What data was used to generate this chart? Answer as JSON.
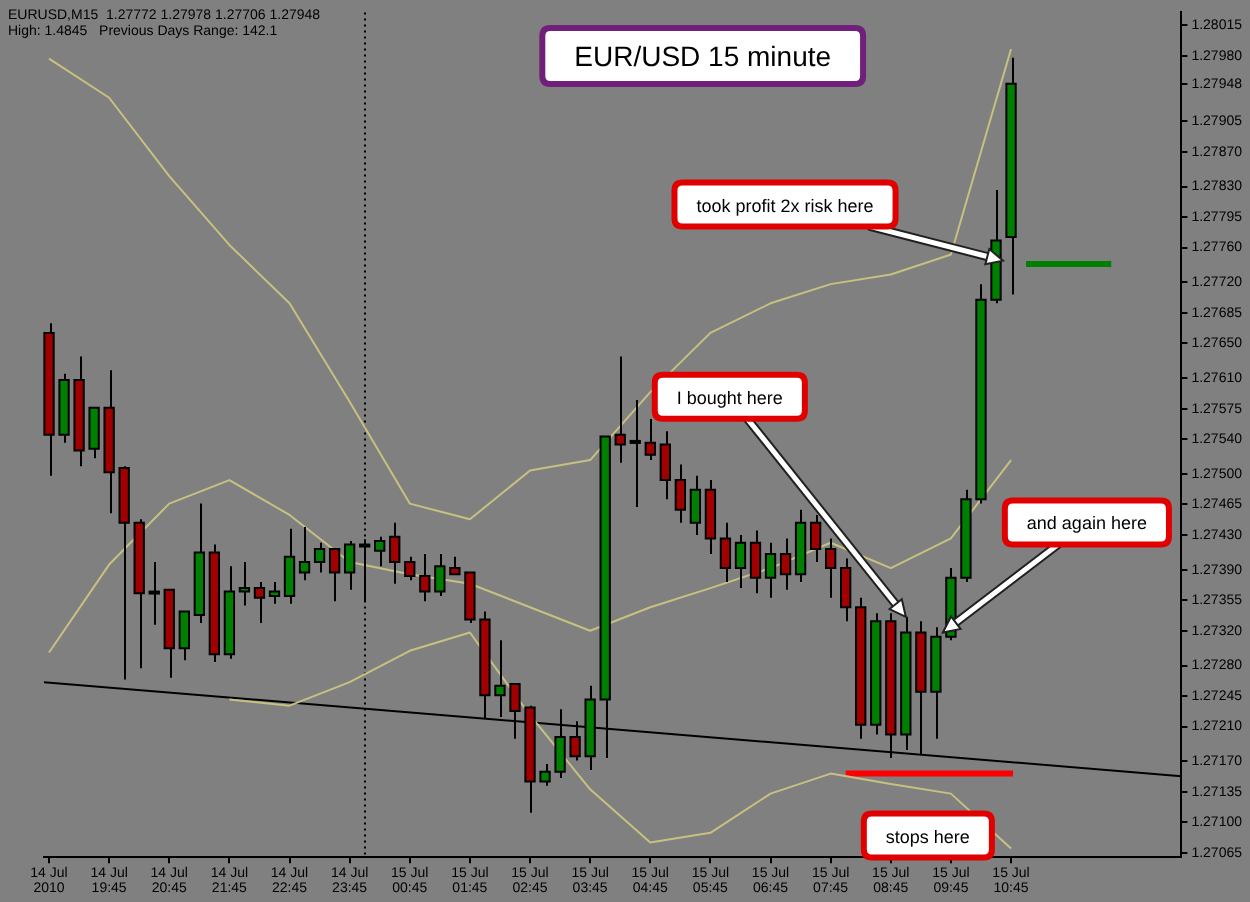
{
  "chart_data": {
    "type": "candlestick",
    "title": "EUR/USD 15 minute",
    "x": [
      "2010-07-14T18:45",
      "2010-07-14T19:00",
      "2010-07-14T19:15",
      "2010-07-14T19:30",
      "2010-07-14T19:45",
      "2010-07-14T20:00",
      "2010-07-14T20:15",
      "2010-07-14T20:30",
      "2010-07-14T20:45",
      "2010-07-14T21:00",
      "2010-07-14T21:15",
      "2010-07-14T21:30",
      "2010-07-14T21:45",
      "2010-07-14T22:00",
      "2010-07-14T22:15",
      "2010-07-14T22:30",
      "2010-07-14T22:45",
      "2010-07-14T23:00",
      "2010-07-14T23:15",
      "2010-07-14T23:30",
      "2010-07-14T23:45",
      "2010-07-15T00:00",
      "2010-07-15T00:15",
      "2010-07-15T00:30",
      "2010-07-15T00:45",
      "2010-07-15T01:00",
      "2010-07-15T01:15",
      "2010-07-15T01:30",
      "2010-07-15T01:45",
      "2010-07-15T02:00",
      "2010-07-15T02:15",
      "2010-07-15T02:30",
      "2010-07-15T02:45",
      "2010-07-15T03:00",
      "2010-07-15T03:15",
      "2010-07-15T03:30",
      "2010-07-15T03:45",
      "2010-07-15T04:00",
      "2010-07-15T04:15",
      "2010-07-15T04:30",
      "2010-07-15T04:45",
      "2010-07-15T05:00",
      "2010-07-15T05:15",
      "2010-07-15T05:30",
      "2010-07-15T05:45",
      "2010-07-15T06:00",
      "2010-07-15T06:15",
      "2010-07-15T06:30",
      "2010-07-15T06:45",
      "2010-07-15T07:00",
      "2010-07-15T07:15",
      "2010-07-15T07:30",
      "2010-07-15T07:45",
      "2010-07-15T08:00",
      "2010-07-15T08:15",
      "2010-07-15T08:30",
      "2010-07-15T08:45",
      "2010-07-15T09:00",
      "2010-07-15T09:15",
      "2010-07-15T09:30",
      "2010-07-15T09:45",
      "2010-07-15T10:00",
      "2010-07-15T10:15",
      "2010-07-15T10:30",
      "2010-07-15T10:45"
    ],
    "ohlc": [
      [
        1.27662,
        1.27673,
        1.27498,
        1.27545
      ],
      [
        1.27545,
        1.27615,
        1.27536,
        1.27608
      ],
      [
        1.27608,
        1.27635,
        1.27509,
        1.27527
      ],
      [
        1.27529,
        1.27576,
        1.27518,
        1.27576
      ],
      [
        1.27576,
        1.27619,
        1.27455,
        1.27502
      ],
      [
        1.27507,
        1.27509,
        1.27264,
        1.27444
      ],
      [
        1.27444,
        1.27448,
        1.27277,
        1.27363
      ],
      [
        1.27365,
        1.27399,
        1.27327,
        1.27365
      ],
      [
        1.27367,
        1.27367,
        1.27266,
        1.273
      ],
      [
        1.273,
        1.27342,
        1.27286,
        1.27342
      ],
      [
        1.27338,
        1.27466,
        1.27329,
        1.2741
      ],
      [
        1.2741,
        1.27419,
        1.27284,
        1.27293
      ],
      [
        1.27293,
        1.27394,
        1.27288,
        1.27365
      ],
      [
        1.27365,
        1.27399,
        1.27349,
        1.27369
      ],
      [
        1.27369,
        1.27376,
        1.27329,
        1.27358
      ],
      [
        1.2736,
        1.27376,
        1.27351,
        1.27365
      ],
      [
        1.2736,
        1.27437,
        1.27351,
        1.27405
      ],
      [
        1.27387,
        1.27439,
        1.27378,
        1.27399
      ],
      [
        1.27399,
        1.27421,
        1.27387,
        1.27414
      ],
      [
        1.27414,
        1.27414,
        1.27354,
        1.27387
      ],
      [
        1.27387,
        1.27423,
        1.27367,
        1.27419
      ],
      [
        1.27419,
        1.27425,
        1.27354,
        1.27419
      ],
      [
        1.27412,
        1.27428,
        1.27394,
        1.27423
      ],
      [
        1.27428,
        1.27444,
        1.27374,
        1.27399
      ],
      [
        1.27399,
        1.27405,
        1.27378,
        1.27383
      ],
      [
        1.27383,
        1.27408,
        1.27354,
        1.27365
      ],
      [
        1.27365,
        1.27408,
        1.2736,
        1.27394
      ],
      [
        1.27392,
        1.27405,
        1.27385,
        1.27385
      ],
      [
        1.27387,
        1.27387,
        1.27329,
        1.27333
      ],
      [
        1.27333,
        1.27342,
        1.27219,
        1.27246
      ],
      [
        1.27246,
        1.27309,
        1.27221,
        1.27257
      ],
      [
        1.27259,
        1.27259,
        1.27196,
        1.27228
      ],
      [
        1.27232,
        1.27234,
        1.27111,
        1.27147
      ],
      [
        1.27147,
        1.27167,
        1.27142,
        1.27158
      ],
      [
        1.27158,
        1.2723,
        1.27151,
        1.27198
      ],
      [
        1.27198,
        1.27216,
        1.27171,
        1.27176
      ],
      [
        1.27176,
        1.27257,
        1.2716,
        1.27241
      ],
      [
        1.27241,
        1.27543,
        1.27174,
        1.27543
      ],
      [
        1.27545,
        1.27635,
        1.27513,
        1.27534
      ],
      [
        1.27536,
        1.27585,
        1.27462,
        1.27538
      ],
      [
        1.27536,
        1.27563,
        1.27516,
        1.27522
      ],
      [
        1.27534,
        1.27549,
        1.27471,
        1.27493
      ],
      [
        1.27493,
        1.27511,
        1.27444,
        1.27459
      ],
      [
        1.27444,
        1.27498,
        1.2743,
        1.27482
      ],
      [
        1.27482,
        1.27493,
        1.27408,
        1.27426
      ],
      [
        1.27426,
        1.27444,
        1.27376,
        1.27392
      ],
      [
        1.27392,
        1.2743,
        1.27369,
        1.27421
      ],
      [
        1.27421,
        1.27435,
        1.27363,
        1.27381
      ],
      [
        1.27381,
        1.27421,
        1.27358,
        1.27408
      ],
      [
        1.27408,
        1.27426,
        1.27367,
        1.27385
      ],
      [
        1.27385,
        1.27459,
        1.27376,
        1.27444
      ],
      [
        1.27444,
        1.27453,
        1.27399,
        1.27414
      ],
      [
        1.27414,
        1.27426,
        1.27358,
        1.27392
      ],
      [
        1.27392,
        1.27403,
        1.27331,
        1.27347
      ],
      [
        1.27347,
        1.27358,
        1.27196,
        1.27212
      ],
      [
        1.27212,
        1.2734,
        1.27201,
        1.27331
      ],
      [
        1.27331,
        1.2734,
        1.27174,
        1.27201
      ],
      [
        1.27201,
        1.27336,
        1.27183,
        1.27318
      ],
      [
        1.27318,
        1.27331,
        1.27178,
        1.2725
      ],
      [
        1.2725,
        1.27324,
        1.27196,
        1.27313
      ],
      [
        1.27313,
        1.27392,
        1.27309,
        1.27381
      ],
      [
        1.27381,
        1.27482,
        1.27376,
        1.27471
      ],
      [
        1.27471,
        1.27718,
        1.27466,
        1.277
      ],
      [
        1.277,
        1.27826,
        1.27696,
        1.27768
      ],
      [
        1.27772,
        1.27978,
        1.27706,
        1.27948
      ]
    ],
    "colors": [
      "#a00000",
      "#008000",
      "#a00000",
      "#008000",
      "#a00000",
      "#a00000",
      "#a00000",
      "#000000",
      "#a00000",
      "#008000",
      "#008000",
      "#a00000",
      "#008000",
      "#008000",
      "#a00000",
      "#008000",
      "#008000",
      "#008000",
      "#008000",
      "#a00000",
      "#008000",
      "#000000",
      "#008000",
      "#a00000",
      "#a00000",
      "#a00000",
      "#008000",
      "#a00000",
      "#a00000",
      "#a00000",
      "#008000",
      "#a00000",
      "#a00000",
      "#008000",
      "#008000",
      "#a00000",
      "#008000",
      "#008000",
      "#a00000",
      "#008000",
      "#a00000",
      "#a00000",
      "#a00000",
      "#008000",
      "#a00000",
      "#a00000",
      "#008000",
      "#a00000",
      "#008000",
      "#a00000",
      "#008000",
      "#a00000",
      "#a00000",
      "#a00000",
      "#a00000",
      "#008000",
      "#a00000",
      "#008000",
      "#a00000",
      "#008000",
      "#008000",
      "#008000",
      "#008000",
      "#008000",
      "#008000"
    ],
    "series": [
      {
        "type": "line",
        "color": "#c8c080",
        "x": [
          "2010-07-14T18:45",
          "2010-07-14T19:45",
          "2010-07-14T20:45",
          "2010-07-14T21:45",
          "2010-07-14T22:45",
          "2010-07-14T23:45",
          "2010-07-15T00:45",
          "2010-07-15T01:45",
          "2010-07-15T02:45",
          "2010-07-15T03:45",
          "2010-07-15T04:45",
          "2010-07-15T05:45",
          "2010-07-15T06:45",
          "2010-07-15T07:45",
          "2010-07-15T08:45",
          "2010-07-15T09:45",
          "2010-07-15T10:45"
        ],
        "values": [
          1.27977,
          1.27932,
          1.27842,
          1.27763,
          1.27696,
          1.27583,
          1.27466,
          1.27448,
          1.27504,
          1.27516,
          1.27594,
          1.27662,
          1.27696,
          1.27718,
          1.27729,
          1.27752,
          1.27988
        ]
      },
      {
        "type": "line",
        "color": "#c8c080",
        "x": [
          "2010-07-14T18:45",
          "2010-07-14T19:45",
          "2010-07-14T20:45",
          "2010-07-14T21:45",
          "2010-07-14T22:45",
          "2010-07-14T23:45",
          "2010-07-15T00:45",
          "2010-07-15T01:45",
          "2010-07-15T02:45",
          "2010-07-15T03:45",
          "2010-07-15T04:45",
          "2010-07-15T05:45",
          "2010-07-15T06:45",
          "2010-07-15T07:45",
          "2010-07-15T08:45",
          "2010-07-15T09:45",
          "2010-07-15T10:45"
        ],
        "values": [
          1.27295,
          1.27396,
          1.27466,
          1.27493,
          1.27453,
          1.27399,
          1.27385,
          1.27374,
          1.27347,
          1.2732,
          1.27347,
          1.27369,
          1.27392,
          1.27421,
          1.27392,
          1.27426,
          1.27516
        ]
      },
      {
        "type": "line",
        "color": "#c8c080",
        "x": [
          "2010-07-14T21:45",
          "2010-07-14T22:45",
          "2010-07-14T23:45",
          "2010-07-15T00:45",
          "2010-07-15T01:45",
          "2010-07-15T02:45",
          "2010-07-15T03:45",
          "2010-07-15T04:45",
          "2010-07-15T05:45",
          "2010-07-15T06:45",
          "2010-07-15T07:45",
          "2010-07-15T08:45",
          "2010-07-15T09:45",
          "2010-07-15T10:45"
        ],
        "values": [
          1.27241,
          1.27234,
          1.27261,
          1.27297,
          1.27318,
          1.27223,
          1.27138,
          1.27077,
          1.27088,
          1.27133,
          1.27156,
          1.27144,
          1.27133,
          1.2707
        ]
      },
      {
        "type": "line",
        "color": "#000000",
        "x": [
          "2010-07-14T18:40",
          "2010-07-15T13:35"
        ],
        "values": [
          1.27261,
          1.27153
        ]
      },
      {
        "type": "line",
        "color": "#008000",
        "x": [
          "2010-07-15T11:00",
          "2010-07-15T12:25"
        ],
        "values": [
          1.27741,
          1.27741
        ]
      },
      {
        "type": "line",
        "color": "#ff0000",
        "x": [
          "2010-07-15T08:00",
          "2010-07-15T10:47"
        ],
        "values": [
          1.27156,
          1.27156
        ]
      }
    ],
    "xlim": [
      "2010-07-14T18:40",
      "2010-07-15T13:35"
    ],
    "xticks": [
      {
        "value": "2010-07-14T18:45",
        "label": "14 Jul 2010"
      },
      {
        "value": "2010-07-14T19:45",
        "label": "14 Jul 19:45"
      },
      {
        "value": "2010-07-14T20:45",
        "label": "14 Jul 20:45"
      },
      {
        "value": "2010-07-14T21:45",
        "label": "14 Jul 21:45"
      },
      {
        "value": "2010-07-14T22:45",
        "label": "14 Jul 22:45"
      },
      {
        "value": "2010-07-14T23:45",
        "label": "14 Jul 23:45"
      },
      {
        "value": "2010-07-15T00:45",
        "label": "15 Jul 00:45"
      },
      {
        "value": "2010-07-15T01:45",
        "label": "15 Jul 01:45"
      },
      {
        "value": "2010-07-15T02:45",
        "label": "15 Jul 02:45"
      },
      {
        "value": "2010-07-15T03:45",
        "label": "15 Jul 03:45"
      },
      {
        "value": "2010-07-15T04:45",
        "label": "15 Jul 04:45"
      },
      {
        "value": "2010-07-15T05:45",
        "label": "15 Jul 05:45"
      },
      {
        "value": "2010-07-15T06:45",
        "label": "15 Jul 06:45"
      },
      {
        "value": "2010-07-15T07:45",
        "label": "15 Jul 07:45"
      },
      {
        "value": "2010-07-15T08:45",
        "label": "15 Jul 08:45"
      },
      {
        "value": "2010-07-15T09:45",
        "label": "15 Jul 09:45"
      },
      {
        "value": "2010-07-15T10:45",
        "label": "15 Jul 10:45"
      }
    ],
    "ylim": [
      1.2706,
      1.2803
    ],
    "yticks": [
      1.28015,
      {
        "value": 1.2798,
        "label": "1.27980"
      },
      1.27948,
      1.27905,
      {
        "value": 1.2787,
        "label": "1.27870"
      },
      {
        "value": 1.2783,
        "label": "1.27830"
      },
      1.27795,
      {
        "value": 1.2776,
        "label": "1.27760"
      },
      {
        "value": 1.2772,
        "label": "1.27720"
      },
      1.27685,
      {
        "value": 1.2765,
        "label": "1.27650"
      },
      {
        "value": 1.2761,
        "label": "1.27610"
      },
      1.27575,
      {
        "value": 1.2754,
        "label": "1.27540"
      },
      {
        "value": 1.275,
        "label": "1.27500"
      },
      1.27465,
      {
        "value": 1.2743,
        "label": "1.27430"
      },
      {
        "value": 1.2739,
        "label": "1.27390"
      },
      1.27355,
      {
        "value": 1.2732,
        "label": "1.27320"
      },
      {
        "value": 1.2728,
        "label": "1.27280"
      },
      1.27245,
      {
        "value": 1.2721,
        "label": "1.27210"
      },
      {
        "value": 1.2717,
        "label": "1.27170"
      },
      1.27135,
      {
        "value": 1.271,
        "label": "1.27100"
      },
      1.27065
    ],
    "ref_lines": [
      {
        "axis": "x",
        "value": "2010-07-15T00:00",
        "color": "#000000",
        "line_style": "dotted"
      }
    ],
    "annotations": [
      "EURUSD,M15  1.27772 1.27978 1.27706 1.27948",
      "High: 1.4845   Previous Days Range: 142.1",
      {
        "text": "took profit 2x risk here",
        "x": "2010-07-15T10:37",
        "y": 1.27745
      },
      {
        "text": "I bought here",
        "x": "2010-07-15T09:00",
        "y": 1.27336
      },
      {
        "text": "and again here",
        "x": "2010-07-15T09:37",
        "y": 1.27318
      },
      {
        "text": "stops here",
        "x": "2010-07-15T09:22",
        "y": 1.27156
      }
    ]
  }
}
